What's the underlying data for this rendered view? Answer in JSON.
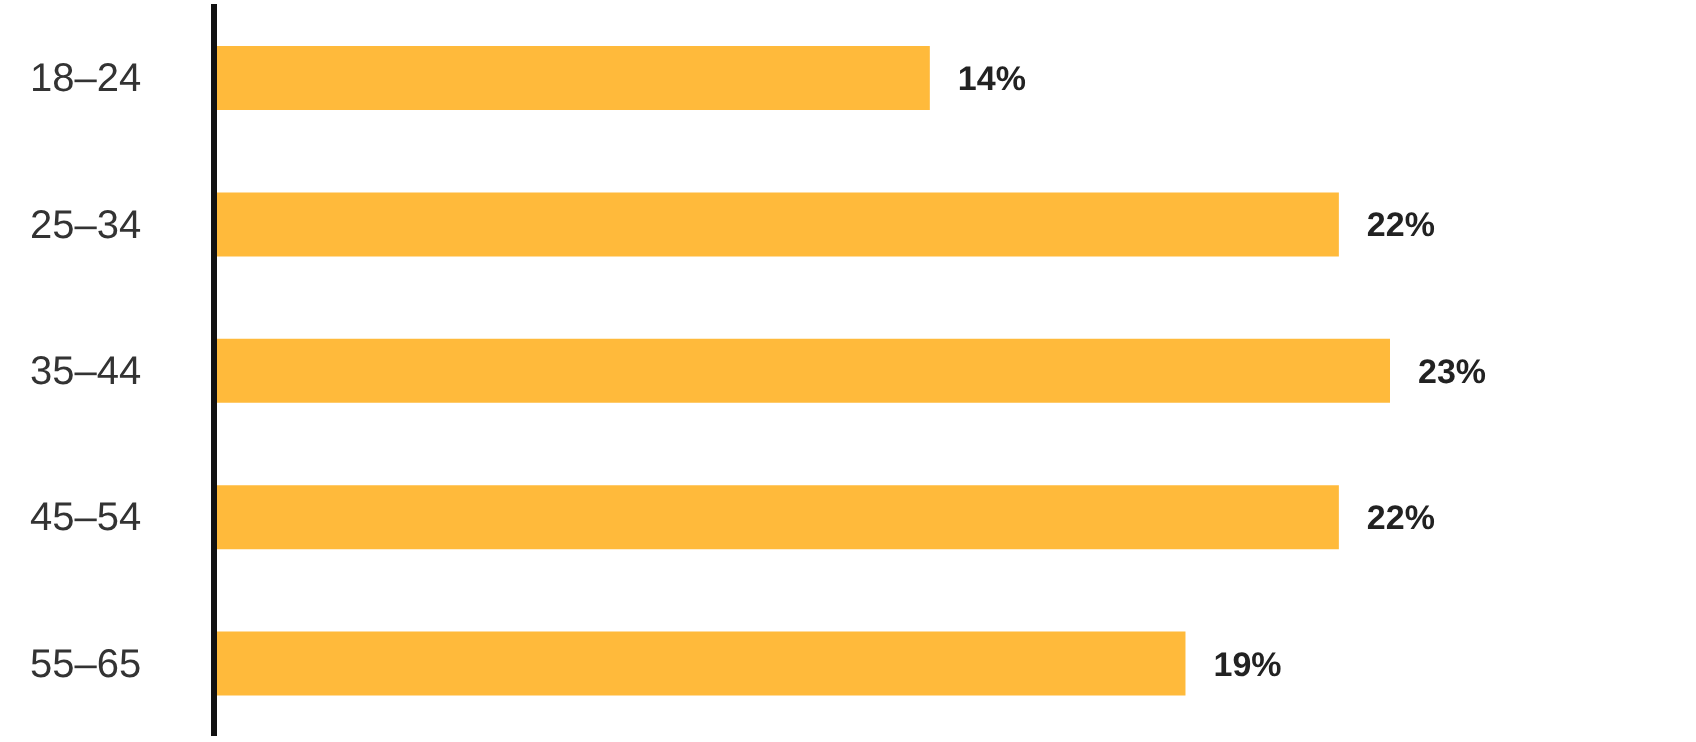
{
  "chart_data": {
    "type": "bar",
    "orientation": "horizontal",
    "categories": [
      "18–24",
      "25–34",
      "35–44",
      "45–54",
      "55–65"
    ],
    "values": [
      14,
      22,
      23,
      22,
      19
    ],
    "color": "#ffba3b",
    "value_labels": [
      "14%",
      "22%",
      "23%",
      "22%",
      "19%"
    ]
  }
}
